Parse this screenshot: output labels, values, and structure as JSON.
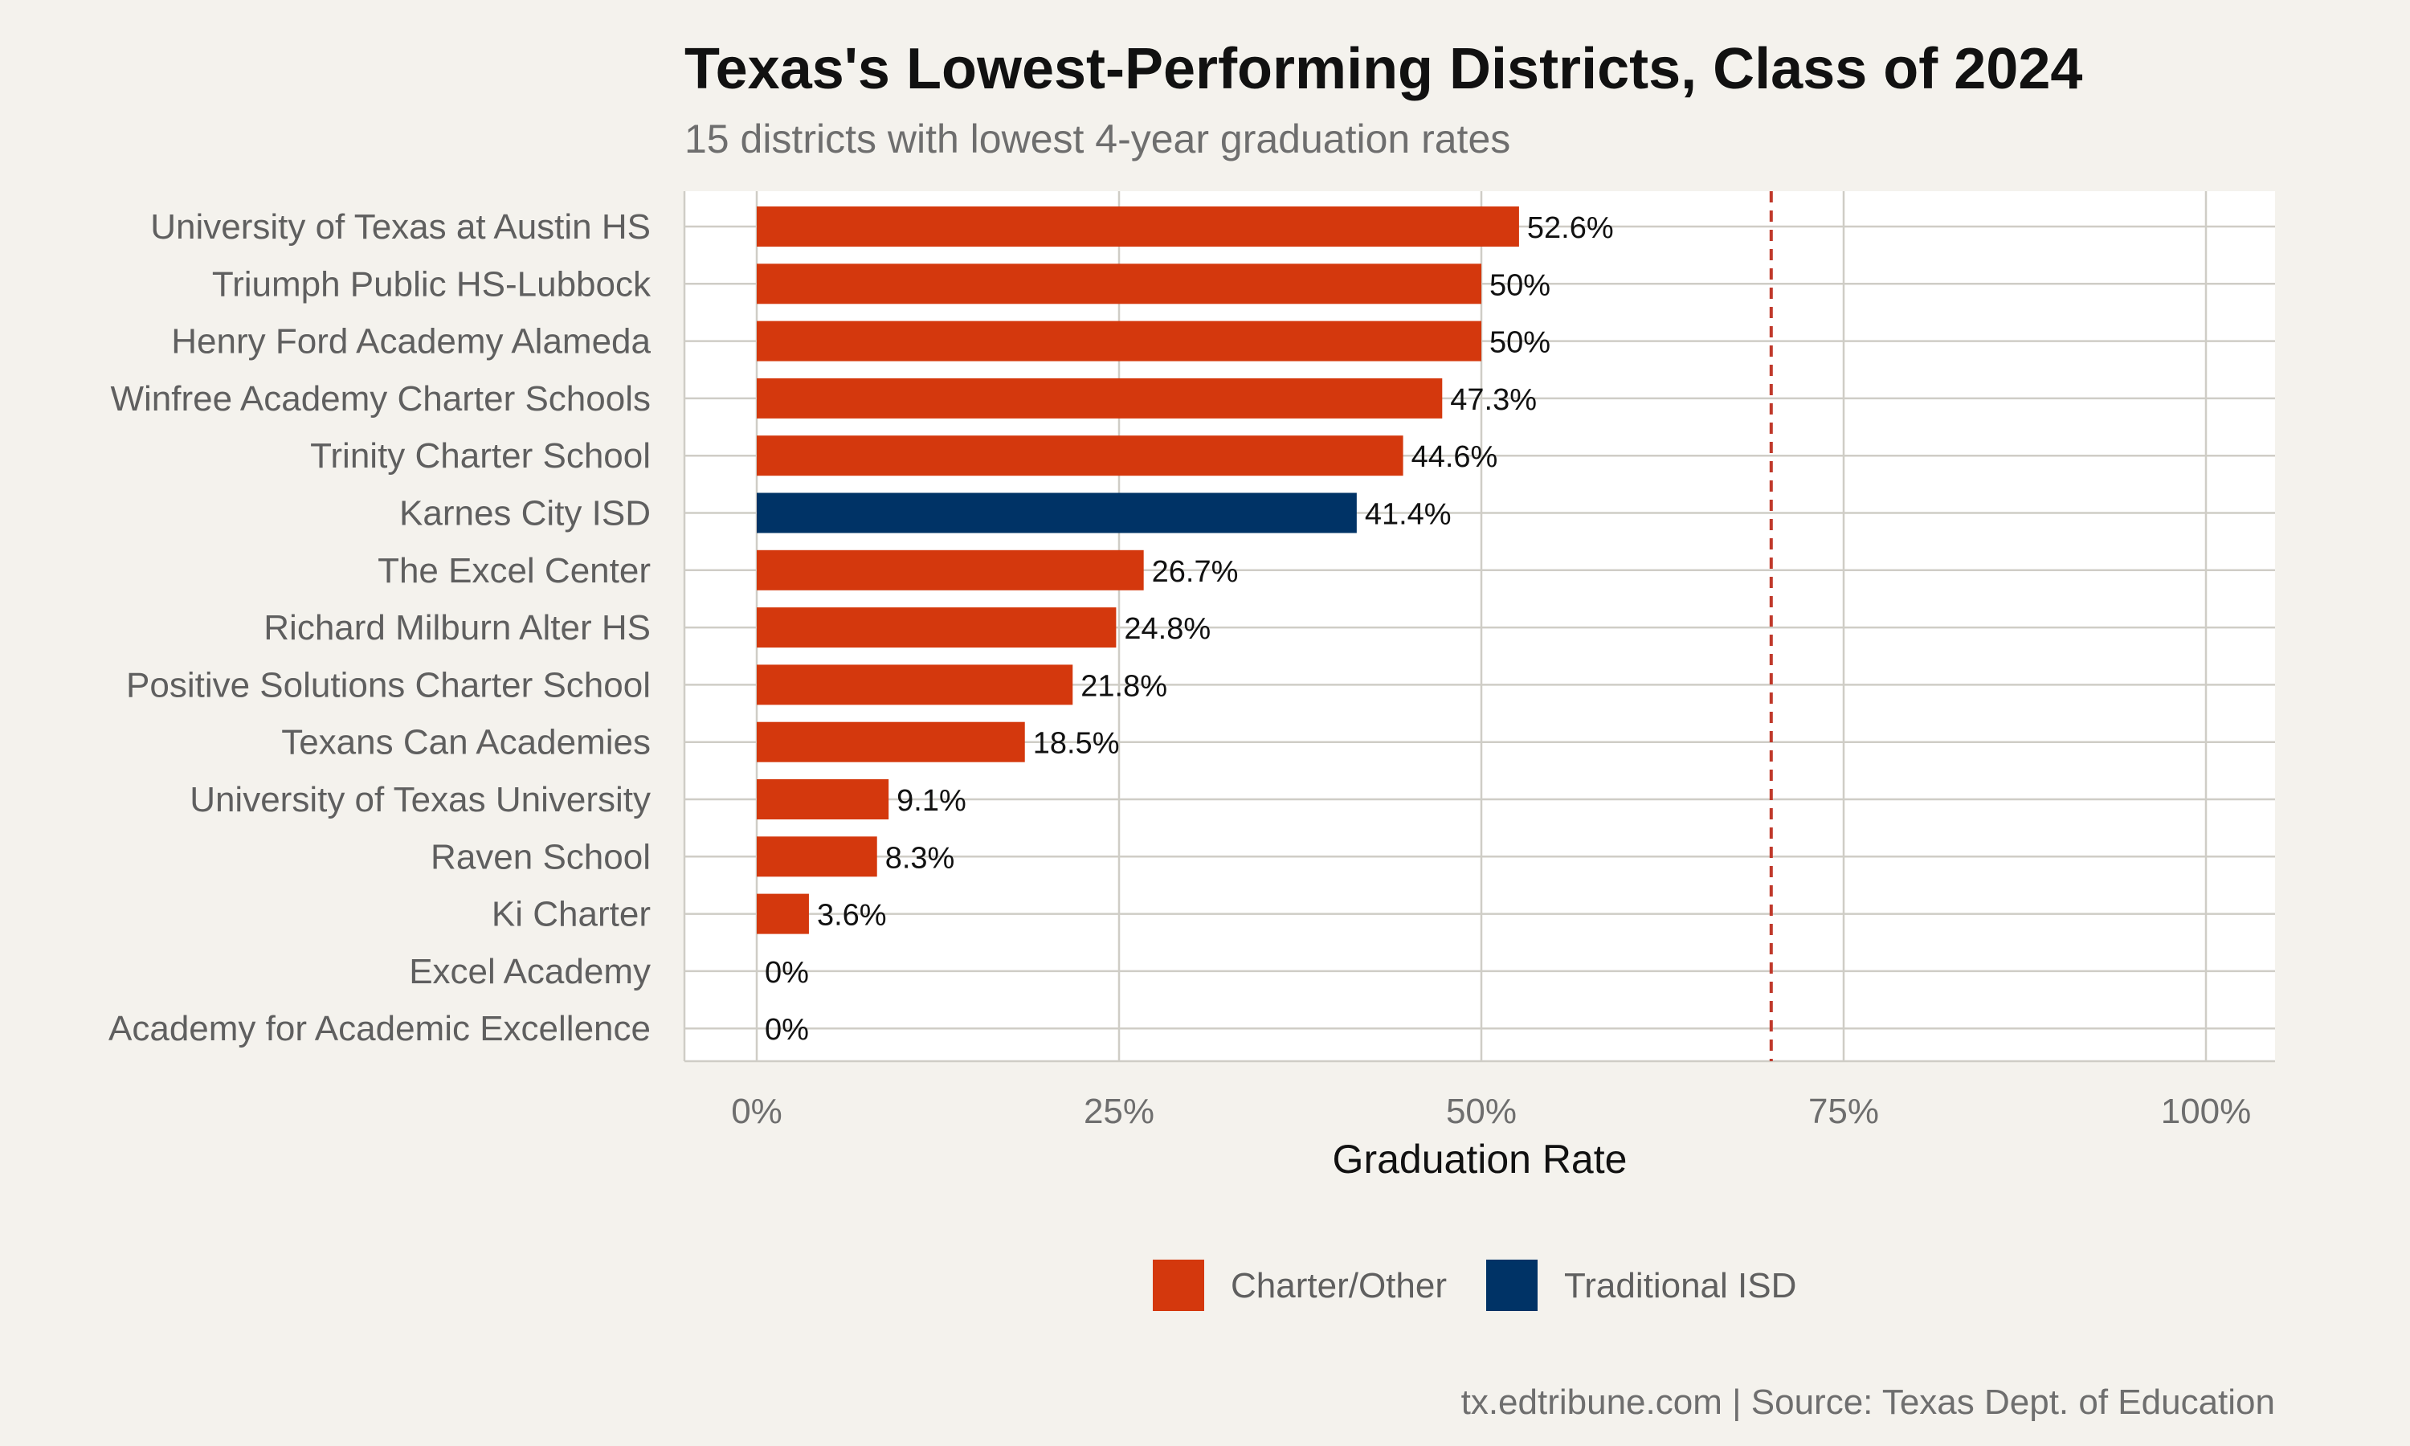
{
  "chart_data": {
    "type": "bar",
    "orientation": "horizontal",
    "title": "Texas's Lowest-Performing Districts, Class of 2024",
    "subtitle": "15 districts with lowest 4-year graduation rates",
    "xlabel": "Graduation Rate",
    "ylabel": "",
    "xlim": [
      0,
      100
    ],
    "x_ticks": [
      0,
      25,
      50,
      75,
      100
    ],
    "x_tick_labels": [
      "0%",
      "25%",
      "50%",
      "75%",
      "100%"
    ],
    "grid": true,
    "reference_line": {
      "value": 70,
      "style": "dashed",
      "color": "#c0392b"
    },
    "categories": [
      "University of Texas at Austin HS",
      "Triumph Public HS-Lubbock",
      "Henry Ford Academy Alameda",
      "Winfree Academy Charter Schools",
      "Trinity Charter School",
      "Karnes City ISD",
      "The Excel Center",
      "Richard Milburn Alter HS",
      "Positive Solutions Charter School",
      "Texans Can Academies",
      "University of Texas University",
      "Raven School",
      "Ki Charter",
      "Excel Academy",
      "Academy for Academic Excellence"
    ],
    "values": [
      52.6,
      50,
      50,
      47.3,
      44.6,
      41.4,
      26.7,
      24.8,
      21.8,
      18.5,
      9.1,
      8.3,
      3.6,
      0,
      0
    ],
    "value_labels": [
      "52.6%",
      "50%",
      "50%",
      "47.3%",
      "44.6%",
      "41.4%",
      "26.7%",
      "24.8%",
      "21.8%",
      "18.5%",
      "9.1%",
      "8.3%",
      "3.6%",
      "0%",
      "0%"
    ],
    "groups": [
      "Charter/Other",
      "Charter/Other",
      "Charter/Other",
      "Charter/Other",
      "Charter/Other",
      "Traditional ISD",
      "Charter/Other",
      "Charter/Other",
      "Charter/Other",
      "Charter/Other",
      "Charter/Other",
      "Charter/Other",
      "Charter/Other",
      "Charter/Other",
      "Charter/Other"
    ],
    "legend": {
      "position": "bottom",
      "entries": [
        {
          "name": "Charter/Other",
          "color": "#d4380d"
        },
        {
          "name": "Traditional ISD",
          "color": "#003366"
        }
      ]
    },
    "caption": "tx.edtribune.com | Source: Texas Dept. of Education"
  }
}
